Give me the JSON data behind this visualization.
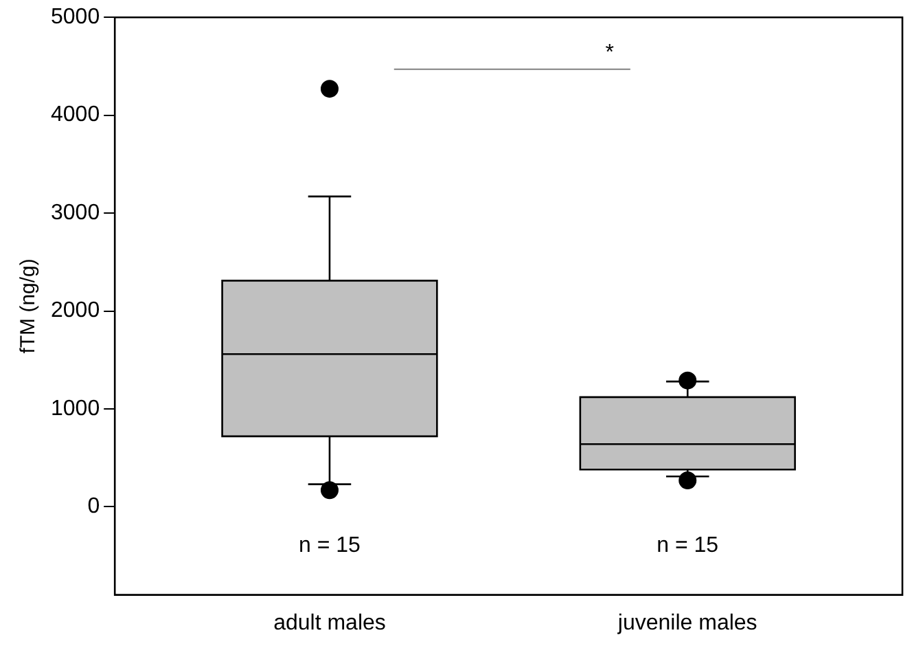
{
  "chart_data": {
    "type": "box",
    "ylabel": "fTM (ng/g)",
    "categories": [
      "adult males",
      "juvenile males"
    ],
    "color": "#c0c0c0",
    "boxes": [
      {
        "low": 230,
        "q1": 720,
        "median": 1560,
        "q3": 2310,
        "high": 3170,
        "outliers": [
          4270,
          170
        ]
      },
      {
        "low": 310,
        "q1": 380,
        "median": 640,
        "q3": 1120,
        "high": 1280,
        "outliers": [
          1290,
          270
        ]
      }
    ],
    "ylim": [
      -900,
      5000
    ],
    "yticks": [
      0,
      1000,
      2000,
      3000,
      4000,
      5000
    ],
    "grid": false,
    "legend": false,
    "annotations": [
      "*",
      "n = 15",
      "n = 15"
    ]
  }
}
